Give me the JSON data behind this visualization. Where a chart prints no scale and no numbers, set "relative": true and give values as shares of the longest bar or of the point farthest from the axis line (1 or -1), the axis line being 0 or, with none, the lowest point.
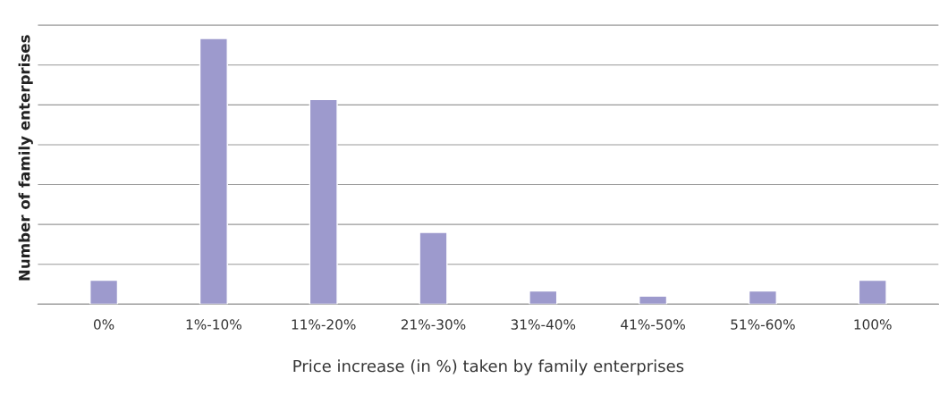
{
  "chart_data": {
    "type": "bar",
    "relative": true,
    "xlabel": "Price increase (in %) taken by family enterprises",
    "ylabel": "Number of family enterprises",
    "categories": [
      "0%",
      "1%-10%",
      "11%-20%",
      "21%-30%",
      "31%-40%",
      "41%-50%",
      "51%-60%",
      "100%"
    ],
    "values": [
      0.09,
      1,
      0.77,
      0.27,
      0.05,
      0.03,
      0.05,
      0.09
    ],
    "color": "#9d9acd",
    "grid": "y"
  }
}
